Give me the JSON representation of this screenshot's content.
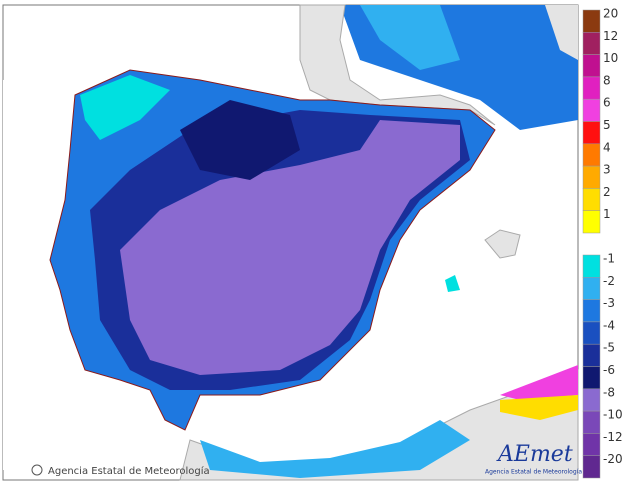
{
  "legend": {
    "warm": [
      {
        "label": "20",
        "color": "#8b3a10"
      },
      {
        "label": "12",
        "color": "#a02060"
      },
      {
        "label": "10",
        "color": "#c01090"
      },
      {
        "label": "8",
        "color": "#e020c0"
      },
      {
        "label": "6",
        "color": "#f040e0"
      },
      {
        "label": "5",
        "color": "#ff1010"
      },
      {
        "label": "4",
        "color": "#ff7a00"
      },
      {
        "label": "3",
        "color": "#ffaa00"
      },
      {
        "label": "2",
        "color": "#ffdd00"
      },
      {
        "label": "1",
        "color": "#ffff00"
      }
    ],
    "cold": [
      {
        "label": "-1",
        "color": "#00e0e0"
      },
      {
        "label": "-2",
        "color": "#30b0f0"
      },
      {
        "label": "-3",
        "color": "#1e78e0"
      },
      {
        "label": "-4",
        "color": "#1a50c0"
      },
      {
        "label": "-5",
        "color": "#1a2f9a"
      },
      {
        "label": "-6",
        "color": "#101870"
      },
      {
        "label": "-8",
        "color": "#8a6ad0"
      },
      {
        "label": "-10",
        "color": "#7a48b8"
      },
      {
        "label": "-12",
        "color": "#7034a8"
      },
      {
        "label": "-20",
        "color": "#602890"
      }
    ]
  },
  "footer": {
    "credit": "Agencia Estatal de Meteorología"
  },
  "logo": {
    "name": "AEmet",
    "subtitle": "Agencia Estatal de Meteorología"
  }
}
